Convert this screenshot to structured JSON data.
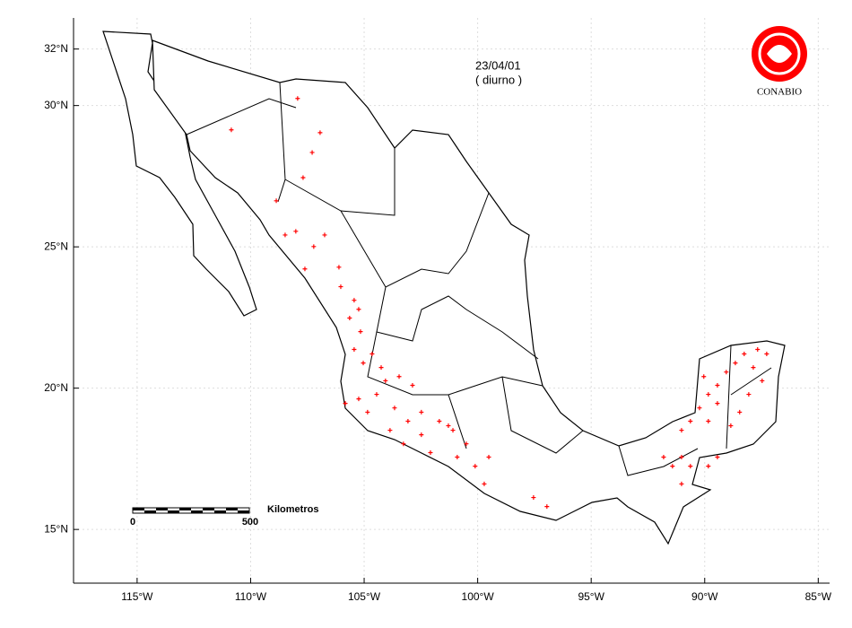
{
  "chart_data": {
    "type": "scatter",
    "annotations": [
      "23/04/01",
      "( diurno )"
    ],
    "logo": "CONABIO",
    "scale_bar": {
      "label": "Kilometros",
      "start": 0,
      "end": 500
    },
    "xlim": [
      -117.8,
      -84.5
    ],
    "ylim": [
      13.1,
      33.1
    ],
    "grid": true,
    "xticks": [
      {
        "value": -115,
        "label": "115°W"
      },
      {
        "value": -110,
        "label": "110°W"
      },
      {
        "value": -105,
        "label": "105°W"
      },
      {
        "value": -100,
        "label": "100°W"
      },
      {
        "value": -95,
        "label": "95°W"
      },
      {
        "value": -90,
        "label": "90°W"
      },
      {
        "value": -85,
        "label": "85°W"
      }
    ],
    "yticks": [
      {
        "value": 15,
        "label": "15°N"
      },
      {
        "value": 20,
        "label": "20°N"
      },
      {
        "value": 25,
        "label": "25°N"
      },
      {
        "value": 30,
        "label": "30°N"
      },
      {
        "value": 32,
        "label": "32°N"
      }
    ],
    "series": [
      {
        "color": "#ff0000",
        "x": [
          -107.93,
          -106.94,
          -107.29,
          -107.69,
          -110.85,
          -108.87,
          -108.48,
          -108.01,
          -107.22,
          -106.74,
          -107.61,
          -106.11,
          -106.03,
          -105.44,
          -105.24,
          -105.64,
          -105.16,
          -105.44,
          -105.04,
          -104.65,
          -104.25,
          -104.06,
          -103.46,
          -102.87,
          -104.45,
          -105.24,
          -105.83,
          -104.85,
          -103.66,
          -103.07,
          -102.48,
          -103.86,
          -103.27,
          -102.48,
          -101.69,
          -101.09,
          -100.5,
          -100.9,
          -102.08,
          -100.11,
          -99.51,
          -99.71,
          -101.29,
          -97.54,
          -96.95,
          -91.81,
          -91.42,
          -91.02,
          -90.63,
          -90.23,
          -89.84,
          -90.04,
          -89.44,
          -89.05,
          -88.65,
          -88.26,
          -87.67,
          -87.27,
          -87.86,
          -87.47,
          -88.06,
          -88.46,
          -88.85,
          -89.44,
          -89.84,
          -89.44,
          -91.02,
          -90.63,
          -91.02,
          -89.84
        ],
        "y": [
          30.25,
          29.04,
          28.34,
          27.45,
          29.14,
          26.63,
          25.42,
          25.55,
          25.01,
          25.42,
          24.22,
          24.28,
          23.59,
          23.11,
          22.79,
          22.48,
          22.0,
          21.37,
          20.89,
          21.21,
          20.73,
          20.26,
          20.41,
          20.1,
          19.78,
          19.62,
          19.46,
          19.15,
          19.3,
          18.83,
          19.15,
          18.51,
          18.03,
          18.35,
          18.83,
          18.51,
          18.03,
          17.56,
          17.72,
          17.24,
          17.56,
          16.61,
          18.67,
          16.13,
          15.81,
          17.56,
          17.24,
          18.51,
          18.83,
          19.3,
          19.78,
          20.41,
          20.1,
          20.57,
          20.89,
          21.21,
          21.37,
          21.21,
          20.73,
          20.26,
          19.78,
          19.15,
          18.67,
          17.56,
          18.83,
          19.46,
          17.56,
          17.24,
          16.61,
          17.24
        ]
      }
    ]
  }
}
